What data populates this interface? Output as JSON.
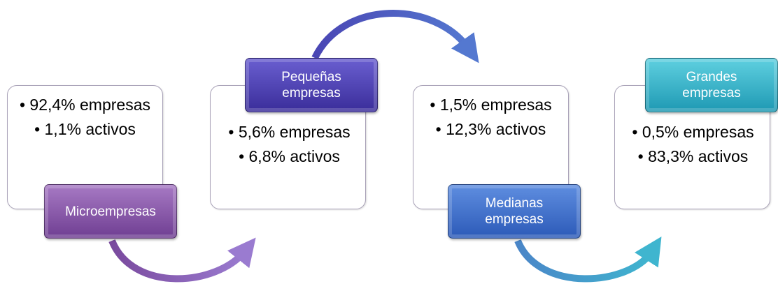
{
  "nodes": [
    {
      "label": "Microempresas",
      "bullets": [
        "• 92,4% empresas",
        "• 1,1% activos"
      ]
    },
    {
      "label": "Pequeñas empresas",
      "bullets": [
        "• 5,6% empresas",
        "• 6,8% activos"
      ]
    },
    {
      "label": "Medianas empresas",
      "bullets": [
        "• 1,5% empresas",
        "• 12,3% activos"
      ]
    },
    {
      "label": "Grandes empresas",
      "bullets": [
        "• 0,5% empresas",
        "• 83,3% activos"
      ]
    }
  ]
}
